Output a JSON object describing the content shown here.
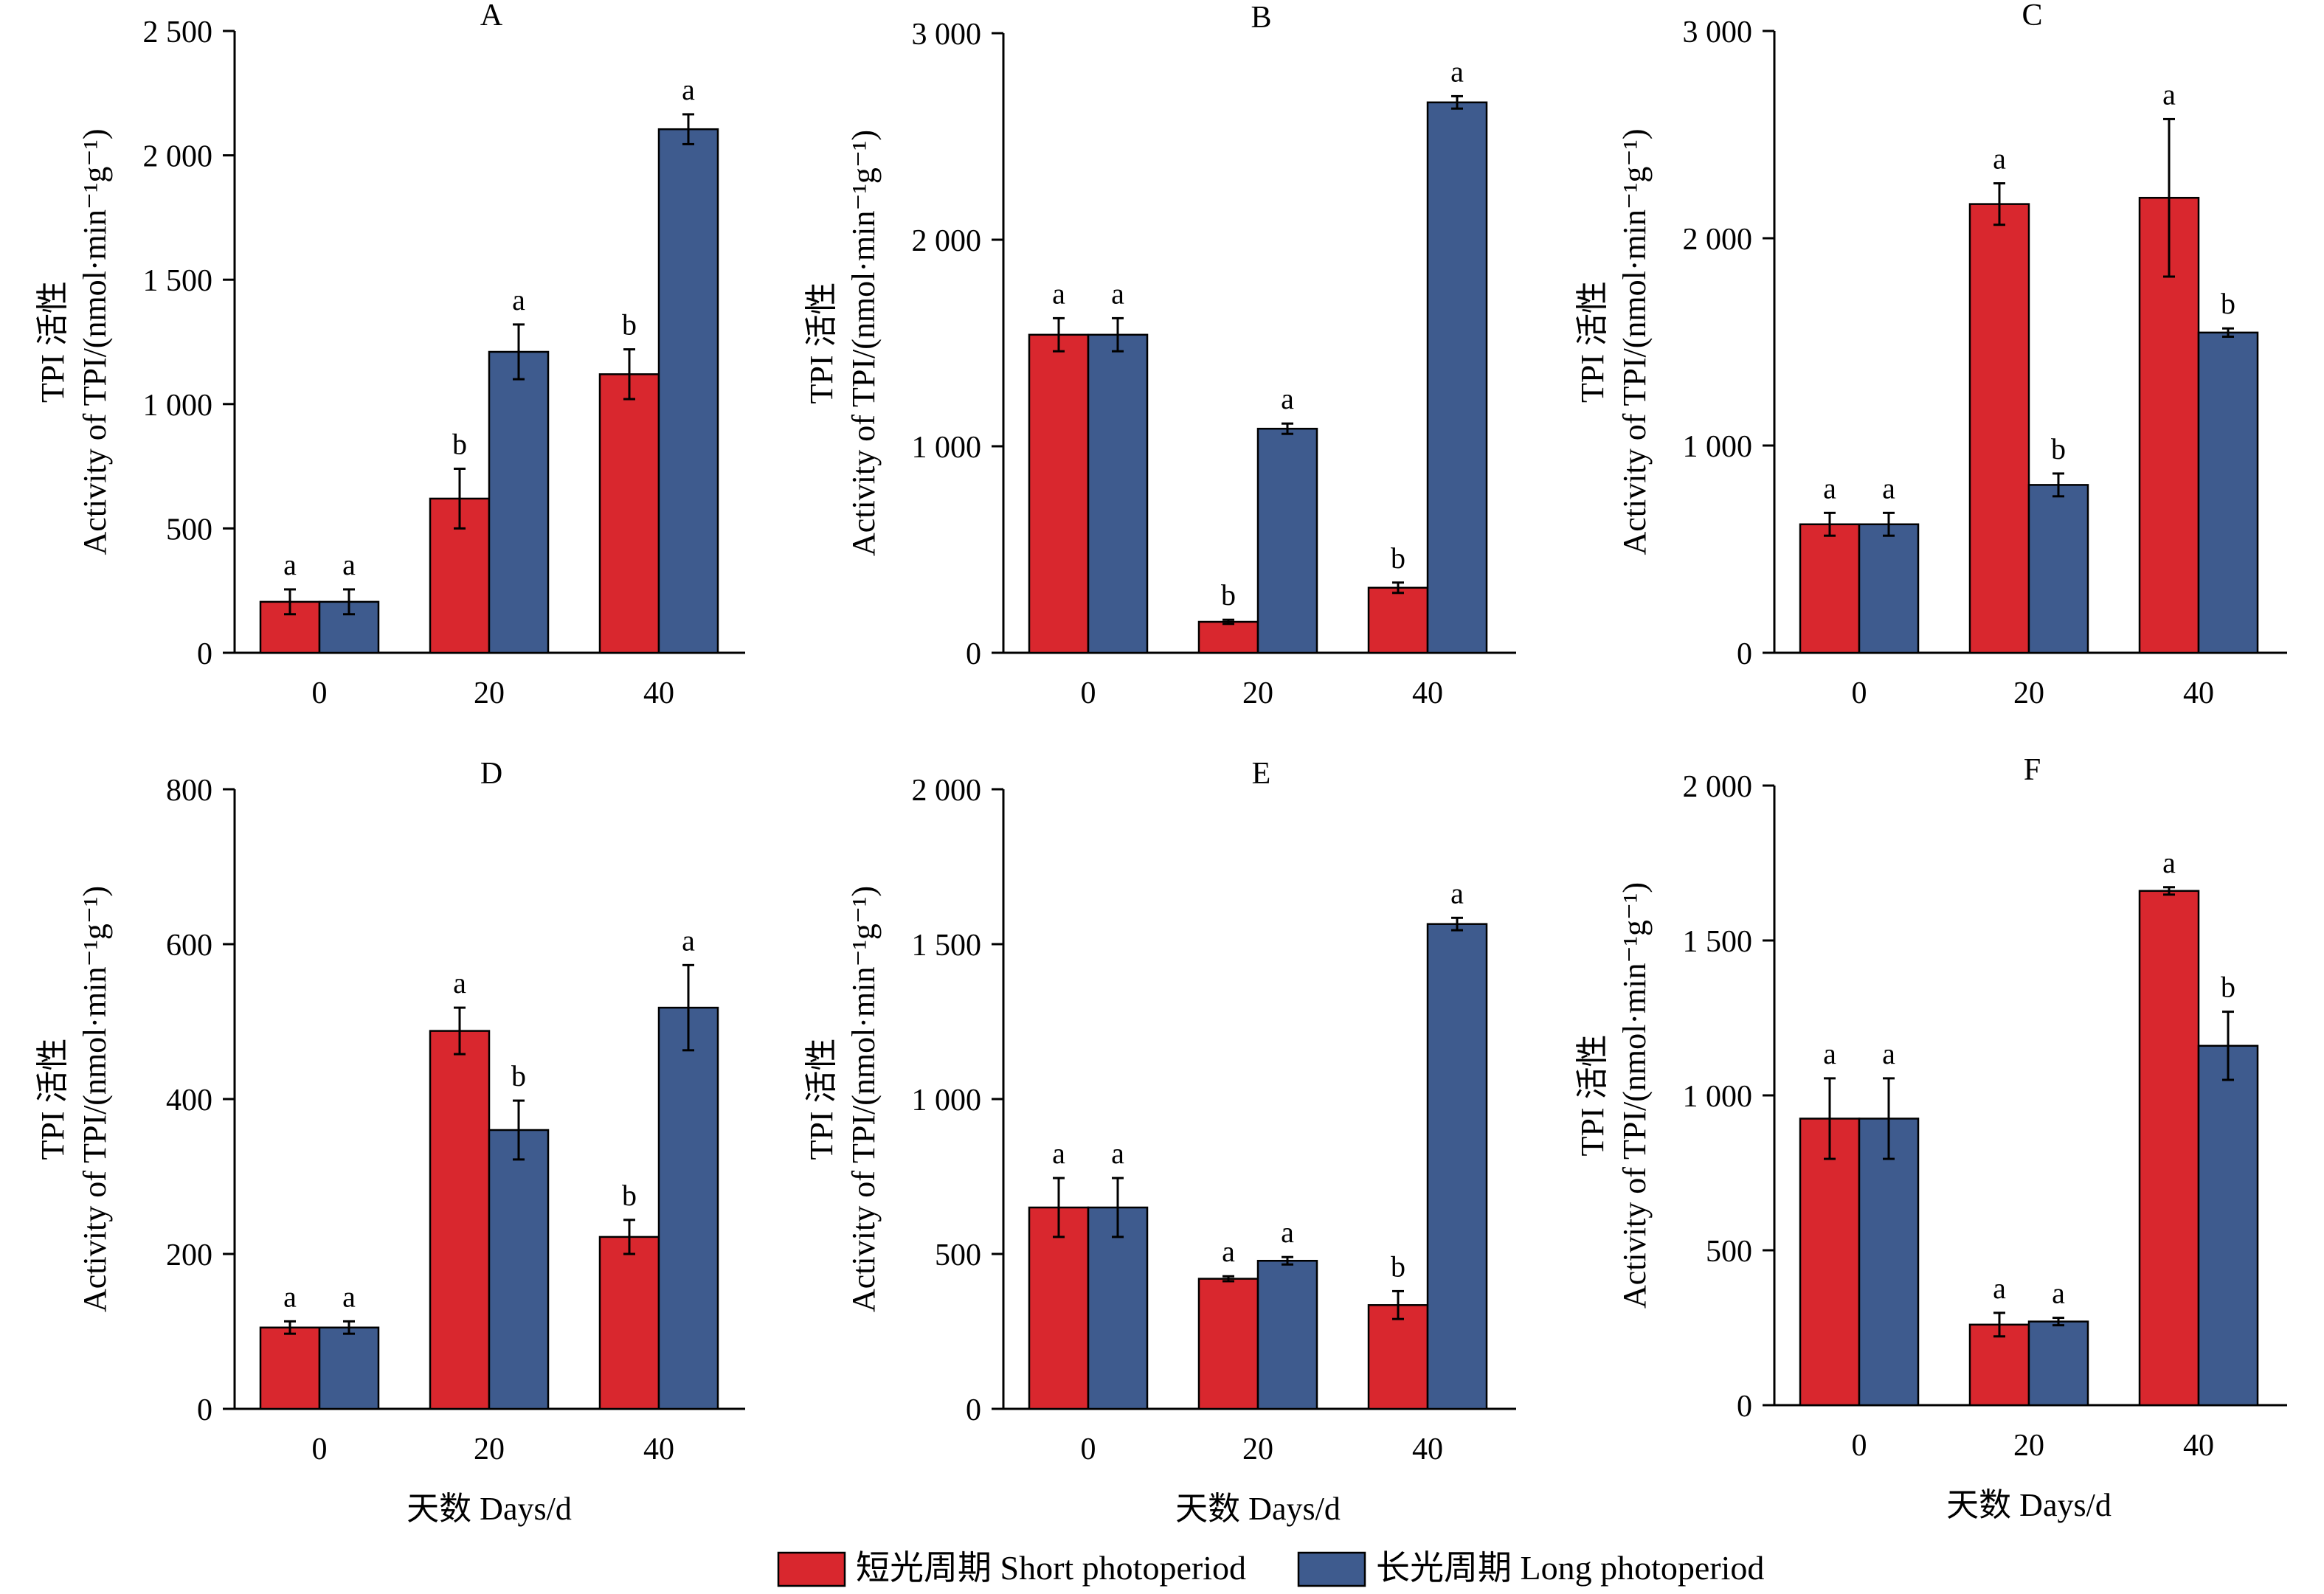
{
  "chart_data": [
    {
      "type": "bar",
      "title": "A",
      "ylabel_cn": "TPI 活性",
      "ylabel_en": "Activity of TPI/(nmol·min⁻¹g⁻¹)",
      "xlabel": "",
      "categories": [
        "0",
        "20",
        "40"
      ],
      "ylim": [
        0,
        2500
      ],
      "yticks": [
        0,
        500,
        1000,
        1500,
        2000,
        2500
      ],
      "ytick_labels": [
        "0",
        "500",
        "1 000",
        "1 500",
        "2 000",
        "2 500"
      ],
      "series": [
        {
          "name": "短光周期 Short photoperiod",
          "values": [
            205,
            620,
            1120
          ],
          "errors": [
            50,
            120,
            100
          ],
          "sig": [
            "a",
            "b",
            "b"
          ]
        },
        {
          "name": "长光周期 Long photoperiod",
          "values": [
            205,
            1210,
            2105
          ],
          "errors": [
            50,
            110,
            60
          ],
          "sig": [
            "a",
            "a",
            "a"
          ]
        }
      ]
    },
    {
      "type": "bar",
      "title": "B",
      "ylabel_cn": "TPI 活性",
      "ylabel_en": "Activity of TPI/(nmol·min⁻¹g⁻¹)",
      "xlabel": "",
      "categories": [
        "0",
        "20",
        "40"
      ],
      "ylim": [
        0,
        3000
      ],
      "yticks": [
        0,
        1000,
        2000,
        3000
      ],
      "ytick_labels": [
        "0",
        "1 000",
        "2 000",
        "3 000"
      ],
      "series": [
        {
          "name": "短光周期 Short photoperiod",
          "values": [
            1540,
            150,
            315
          ],
          "errors": [
            80,
            10,
            25
          ],
          "sig": [
            "a",
            "b",
            "b"
          ]
        },
        {
          "name": "长光周期 Long photoperiod",
          "values": [
            1540,
            1085,
            2665
          ],
          "errors": [
            80,
            25,
            30
          ],
          "sig": [
            "a",
            "a",
            "a"
          ]
        }
      ]
    },
    {
      "type": "bar",
      "title": "C",
      "ylabel_cn": "TPI 活性",
      "ylabel_en": "Activity of TPI/(nmol·min⁻¹g⁻¹)",
      "xlabel": "",
      "categories": [
        "0",
        "20",
        "40"
      ],
      "ylim": [
        0,
        3000
      ],
      "yticks": [
        0,
        1000,
        2000,
        3000
      ],
      "ytick_labels": [
        "0",
        "1 000",
        "2 000",
        "3 000"
      ],
      "series": [
        {
          "name": "短光周期 Short photoperiod",
          "values": [
            620,
            2165,
            2195
          ],
          "errors": [
            55,
            100,
            380
          ],
          "sig": [
            "a",
            "a",
            "a"
          ]
        },
        {
          "name": "长光周期 Long photoperiod",
          "values": [
            620,
            810,
            1545
          ],
          "errors": [
            55,
            55,
            20
          ],
          "sig": [
            "a",
            "b",
            "b"
          ]
        }
      ]
    },
    {
      "type": "bar",
      "title": "D",
      "ylabel_cn": "TPI 活性",
      "ylabel_en": "Activity of TPI/(nmol·min⁻¹g⁻¹)",
      "xlabel": "天数 Days/d",
      "categories": [
        "0",
        "20",
        "40"
      ],
      "ylim": [
        0,
        800
      ],
      "yticks": [
        0,
        200,
        400,
        600,
        800
      ],
      "ytick_labels": [
        "0",
        "200",
        "400",
        "600",
        "800"
      ],
      "series": [
        {
          "name": "短光周期 Short photoperiod",
          "values": [
            105,
            488,
            222
          ],
          "errors": [
            8,
            30,
            22
          ],
          "sig": [
            "a",
            "a",
            "b"
          ]
        },
        {
          "name": "长光周期 Long photoperiod",
          "values": [
            105,
            360,
            518
          ],
          "errors": [
            8,
            38,
            55
          ],
          "sig": [
            "a",
            "b",
            "a"
          ]
        }
      ]
    },
    {
      "type": "bar",
      "title": "E",
      "ylabel_cn": "TPI 活性",
      "ylabel_en": "Activity of TPI/(nmol·min⁻¹g⁻¹)",
      "xlabel": "天数 Days/d",
      "categories": [
        "0",
        "20",
        "40"
      ],
      "ylim": [
        0,
        2000
      ],
      "yticks": [
        0,
        500,
        1000,
        1500,
        2000
      ],
      "ytick_labels": [
        "0",
        "500",
        "1 000",
        "1 500",
        "2 000"
      ],
      "series": [
        {
          "name": "短光周期 Short photoperiod",
          "values": [
            650,
            420,
            335
          ],
          "errors": [
            95,
            8,
            45
          ],
          "sig": [
            "a",
            "a",
            "b"
          ]
        },
        {
          "name": "长光周期 Long photoperiod",
          "values": [
            650,
            478,
            1565
          ],
          "errors": [
            95,
            12,
            20
          ],
          "sig": [
            "a",
            "a",
            "a"
          ]
        }
      ]
    },
    {
      "type": "bar",
      "title": "F",
      "ylabel_cn": "TPI 活性",
      "ylabel_en": "Activity of TPI/(nmol·min⁻¹g⁻¹)",
      "xlabel": "天数 Days/d",
      "categories": [
        "0",
        "20",
        "40"
      ],
      "ylim": [
        0,
        2000
      ],
      "yticks": [
        0,
        500,
        1000,
        1500,
        2000
      ],
      "ytick_labels": [
        "0",
        "500",
        "1 000",
        "1 500",
        "2 000"
      ],
      "series": [
        {
          "name": "短光周期 Short photoperiod",
          "values": [
            925,
            260,
            1660
          ],
          "errors": [
            130,
            38,
            12
          ],
          "sig": [
            "a",
            "a",
            "a"
          ]
        },
        {
          "name": "长光周期 Long photoperiod",
          "values": [
            925,
            270,
            1160
          ],
          "errors": [
            130,
            12,
            110
          ],
          "sig": [
            "a",
            "a",
            "b"
          ]
        }
      ]
    }
  ],
  "legend": {
    "items": [
      {
        "label": "短光周期 Short photoperiod",
        "color": "#d9272e"
      },
      {
        "label": "长光周期 Long photoperiod",
        "color": "#3e5b8e"
      }
    ]
  },
  "colors": {
    "short": "#d9272e",
    "long": "#3e5b8e"
  }
}
